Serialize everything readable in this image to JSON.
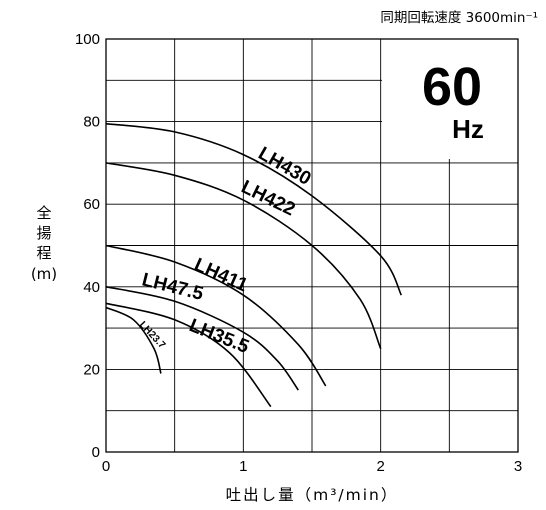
{
  "note": "同期回転速度 3600min⁻¹",
  "frequency_value": "60",
  "frequency_unit": "Hz",
  "ylabel_chars": [
    "全",
    "揚",
    "程",
    "(m)"
  ],
  "chart_data": {
    "type": "line",
    "title": "",
    "xlabel": "吐出し量（m³/min）",
    "ylabel": "全揚程(m)",
    "xlim": [
      0,
      3
    ],
    "ylim": [
      0,
      100
    ],
    "xticks": [
      0,
      1,
      2,
      3
    ],
    "yticks": [
      0,
      20,
      40,
      60,
      80,
      100
    ],
    "x_grid_step": 0.5,
    "y_grid_step": 10,
    "grid": true,
    "series": [
      {
        "name": "LH430",
        "x": [
          0,
          0.5,
          1.0,
          1.5,
          2.0,
          2.15
        ],
        "y": [
          79.5,
          77.5,
          72,
          62,
          47.5,
          38
        ]
      },
      {
        "name": "LH422",
        "x": [
          0,
          0.5,
          1.0,
          1.5,
          1.85,
          2.0
        ],
        "y": [
          70,
          67,
          61,
          50,
          37,
          25
        ]
      },
      {
        "name": "LH411",
        "x": [
          0,
          0.5,
          1.0,
          1.4,
          1.6
        ],
        "y": [
          50,
          46,
          38,
          26,
          16
        ]
      },
      {
        "name": "LH47.5",
        "x": [
          0,
          0.5,
          1.0,
          1.25,
          1.4
        ],
        "y": [
          40,
          36.5,
          29,
          22,
          15
        ]
      },
      {
        "name": "LH35.5",
        "x": [
          0,
          0.5,
          0.9,
          1.2
        ],
        "y": [
          36,
          32,
          24,
          11
        ]
      },
      {
        "name": "LH23.7",
        "x": [
          0,
          0.2,
          0.35,
          0.4
        ],
        "y": [
          35,
          32,
          25,
          19
        ]
      }
    ]
  }
}
